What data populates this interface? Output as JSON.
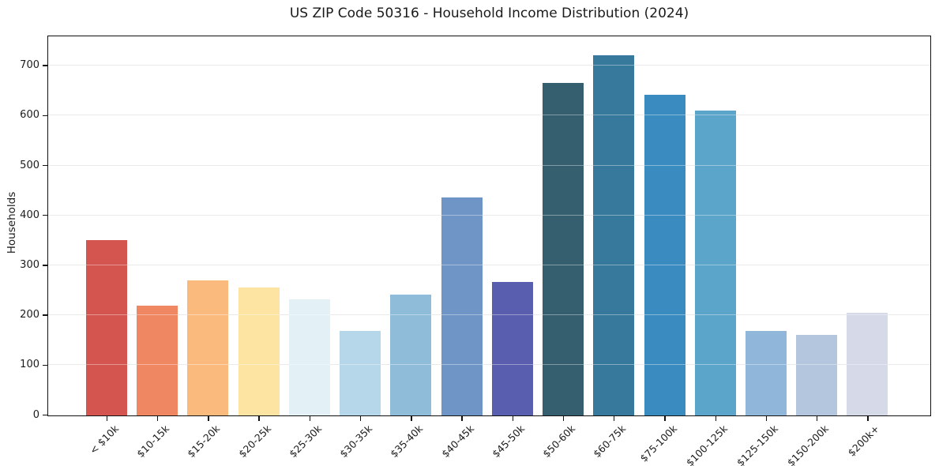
{
  "figure": {
    "background": "#ffffff"
  },
  "chart_data": {
    "type": "bar",
    "title": "US ZIP Code 50316 - Household Income Distribution (2024)",
    "xlabel": "",
    "ylabel": "Households",
    "categories": [
      "< $10k",
      "$10-15k",
      "$15-20k",
      "$20-25k",
      "$25-30k",
      "$30-35k",
      "$35-40k",
      "$40-45k",
      "$45-50k",
      "$50-60k",
      "$60-75k",
      "$75-100k",
      "$100-125k",
      "$125-150k",
      "$150-200k",
      "$200k+"
    ],
    "values": [
      351,
      220,
      271,
      257,
      232,
      170,
      242,
      437,
      267,
      667,
      721,
      643,
      611,
      170,
      162,
      206
    ],
    "bar_colors": [
      "#d4554f",
      "#f08763",
      "#faba7d",
      "#fde4a2",
      "#e3f0f6",
      "#b6d7e9",
      "#8fbcd9",
      "#6e95c6",
      "#5a5eae",
      "#355e6e",
      "#37799c",
      "#3a8cc0",
      "#5ba5ca",
      "#90b6d9",
      "#b3c6de",
      "#d6d9e7"
    ],
    "yticks": [
      0,
      100,
      200,
      300,
      400,
      500,
      600,
      700
    ],
    "ylim": [
      0,
      758
    ],
    "grid": "horizontal",
    "gridline_color": "#dddddd",
    "axis_color": "#111111",
    "text_color": "#1c1c1c",
    "legend": false,
    "x_tick_rotation_deg": 45
  }
}
